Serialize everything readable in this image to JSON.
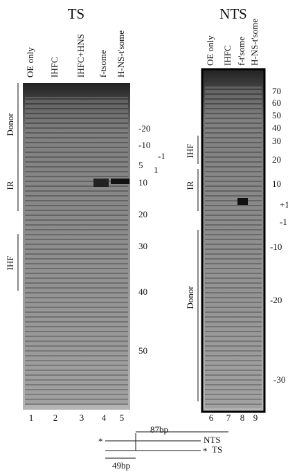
{
  "panels": [
    {
      "title": "TS",
      "lanes": [
        "OE only",
        "IHFC",
        "IHFC+HNS",
        "f-tsome",
        "H-NS-t'some"
      ],
      "lane_numbers": [
        "1",
        "2",
        "3",
        "4",
        "5"
      ],
      "positions": [
        "-20",
        "-10",
        "-1",
        "5",
        "1",
        "10",
        "20",
        "30",
        "40",
        "50"
      ],
      "regions": [
        "Donor",
        "IR",
        "IHF"
      ]
    },
    {
      "title": "NTS",
      "lanes": [
        "OE only",
        "IHFC",
        "f-t'some",
        "H-NS-t'some"
      ],
      "lane_numbers": [
        "6",
        "7",
        "8",
        "9"
      ],
      "positions": [
        "70",
        "60",
        "50",
        "40",
        "30",
        "20",
        "10",
        "+1",
        "-1",
        "-10",
        "-20",
        "-30"
      ],
      "regions": [
        "IHF",
        "IR",
        "Donor"
      ]
    }
  ],
  "diagram": {
    "span_top": "87bp",
    "strand_top": "NTS",
    "strand_bottom": "TS",
    "span_bottom": "49bp",
    "marks": [
      "*",
      "*"
    ]
  }
}
